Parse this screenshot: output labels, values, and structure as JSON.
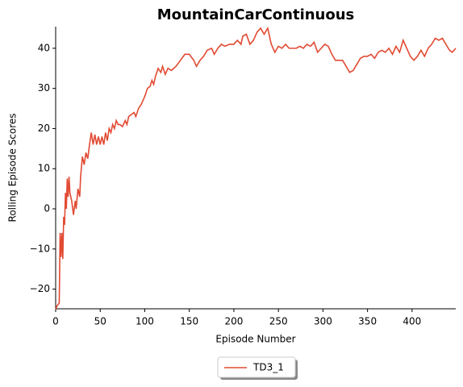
{
  "chart_data": {
    "type": "line",
    "title": "MountainCarContinuous",
    "x_label": "Episode Number",
    "y_label": "Rolling Episode Scores",
    "xlim": [
      0,
      449
    ],
    "ylim": [
      -24.9,
      45.4
    ],
    "xticks": [
      0,
      50,
      100,
      150,
      200,
      250,
      300,
      350,
      400
    ],
    "yticks": [
      {
        "value": -20,
        "label": "−20"
      },
      {
        "value": -10,
        "label": "−10"
      },
      0,
      10,
      20,
      30,
      40
    ],
    "grid": false,
    "legend": "lower center",
    "x": [
      0,
      2,
      4,
      5,
      6,
      7,
      8,
      9,
      10,
      11,
      12,
      13,
      14,
      15,
      16,
      18,
      20,
      22,
      23,
      25,
      27,
      28,
      30,
      32,
      34,
      36,
      38,
      40,
      42,
      44,
      46,
      48,
      50,
      52,
      54,
      56,
      58,
      60,
      62,
      64,
      66,
      68,
      70,
      72,
      75,
      78,
      80,
      82,
      85,
      88,
      90,
      93,
      96,
      100,
      103,
      106,
      108,
      110,
      112,
      115,
      118,
      120,
      123,
      126,
      130,
      135,
      140,
      145,
      150,
      155,
      158,
      162,
      166,
      170,
      175,
      178,
      182,
      186,
      190,
      195,
      200,
      204,
      208,
      210,
      214,
      218,
      222,
      226,
      230,
      234,
      238,
      242,
      246,
      250,
      254,
      258,
      262,
      266,
      270,
      274,
      278,
      282,
      286,
      290,
      294,
      298,
      302,
      306,
      310,
      314,
      318,
      322,
      326,
      330,
      334,
      338,
      342,
      346,
      350,
      354,
      358,
      362,
      366,
      370,
      374,
      378,
      382,
      386,
      390,
      394,
      398,
      402,
      406,
      410,
      414,
      418,
      422,
      426,
      430,
      434,
      438,
      442,
      445,
      449
    ],
    "series": [
      {
        "name": "TD3_1",
        "color": "#e24a33",
        "values": [
          -25,
          -24,
          -23.5,
          -6,
          -12,
          -6,
          -12.5,
          -2,
          -4,
          4,
          0,
          7.5,
          3,
          8,
          4,
          2,
          -1.5,
          2,
          0,
          5,
          3,
          8,
          13,
          11,
          14,
          12.5,
          16,
          19,
          16,
          18.5,
          16,
          18,
          16,
          18,
          16,
          19,
          17,
          20,
          19,
          21,
          20,
          22,
          21,
          21,
          20.5,
          22,
          21,
          23,
          23.5,
          24,
          23,
          25,
          26,
          28,
          30,
          30.5,
          32,
          31,
          33,
          35,
          34,
          35.5,
          33.5,
          35,
          34.5,
          35.5,
          37,
          38.5,
          38.5,
          37,
          35.5,
          37,
          38,
          39.5,
          40,
          38.5,
          40,
          41,
          40.5,
          41,
          41,
          42,
          41,
          43,
          43.5,
          41,
          42,
          44,
          45,
          43.5,
          45,
          41,
          39,
          40.5,
          40,
          41,
          40,
          40,
          40,
          40.5,
          40,
          41,
          40.5,
          41.5,
          39,
          40,
          41,
          40.5,
          38.5,
          37,
          37,
          37,
          35.5,
          34,
          34.5,
          36,
          37.5,
          38,
          38,
          38.5,
          37.5,
          39,
          39.5,
          39,
          40,
          38.5,
          40.5,
          39,
          42,
          40,
          38,
          37,
          38,
          39.5,
          38,
          40,
          41,
          42.5,
          42,
          42.5,
          41,
          39.5,
          39,
          40
        ]
      }
    ]
  }
}
